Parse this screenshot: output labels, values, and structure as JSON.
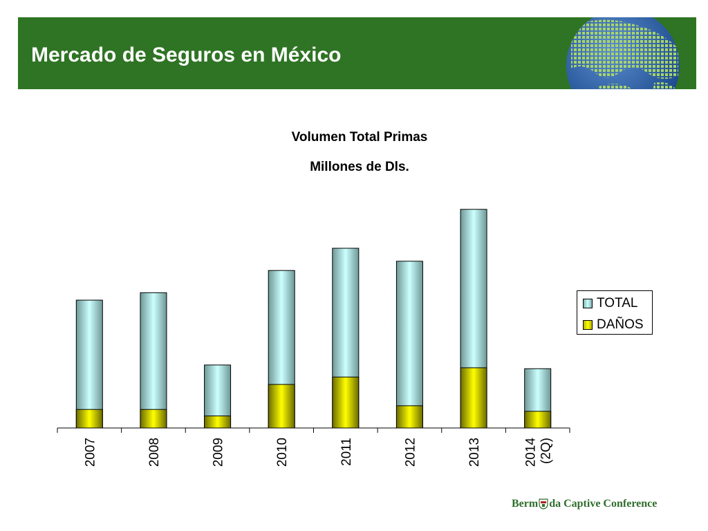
{
  "header": {
    "title": "Mercado de Seguros en México"
  },
  "chart_data": {
    "type": "bar",
    "title": "Volumen Total Primas",
    "subtitle": "Millones de Dls.",
    "categories": [
      "2007",
      "2008",
      "2009",
      "2010",
      "2011",
      "2012",
      "2013",
      "2014 (2Q)"
    ],
    "category_lines": [
      [
        "2007"
      ],
      [
        "2008"
      ],
      [
        "2009"
      ],
      [
        "2010"
      ],
      [
        "2011"
      ],
      [
        "2012"
      ],
      [
        "2013"
      ],
      [
        "2014",
        "(2Q)"
      ]
    ],
    "series": [
      {
        "name": "TOTAL",
        "values": [
          13800,
          14600,
          6800,
          17000,
          19400,
          18000,
          23600,
          6400
        ]
      },
      {
        "name": "DAÑOS",
        "values": [
          2000,
          2000,
          1300,
          4700,
          5500,
          2400,
          6500,
          1800
        ]
      }
    ],
    "ylim": [
      0,
      25000
    ],
    "grid": false,
    "legend_position": "right",
    "colors": {
      "TOTAL": {
        "edge": "#6e9896",
        "center": "#ccffff"
      },
      "DAÑOS": {
        "edge": "#6b6b00",
        "center": "#ffff00"
      }
    }
  },
  "legend": {
    "total_label": "TOTAL",
    "danos_label": "DAÑOS"
  },
  "footer": {
    "logo_left": "Berm",
    "logo_right": "da Captive Conference"
  },
  "colors": {
    "header_green": "#2f7424",
    "logo_green": "#2f6e2c"
  }
}
